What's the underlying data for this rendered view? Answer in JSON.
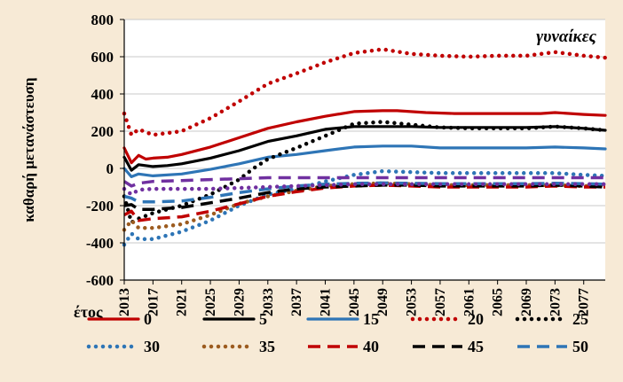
{
  "chart_data": {
    "type": "line",
    "annotation": "γυναίκες",
    "ylabel": "καθαρή μετανάστευση",
    "xlabel": "έτος",
    "ylim": [
      -600,
      800
    ],
    "yticks": [
      -600,
      -400,
      -200,
      0,
      200,
      400,
      600,
      800
    ],
    "xlim": [
      2013,
      2080
    ],
    "xticks": [
      2013,
      2017,
      2021,
      2025,
      2029,
      2033,
      2037,
      2041,
      2045,
      2049,
      2053,
      2057,
      2061,
      2065,
      2069,
      2073,
      2077
    ],
    "grid": "horizontal",
    "legend_position": "bottom",
    "series": [
      {
        "name": "0",
        "color": "#c00000",
        "dash": "solid",
        "x": [
          2013,
          2014,
          2015,
          2016,
          2017,
          2019,
          2021,
          2025,
          2029,
          2033,
          2037,
          2041,
          2045,
          2049,
          2051,
          2055,
          2059,
          2065,
          2071,
          2073,
          2077,
          2080
        ],
        "y": [
          110,
          30,
          70,
          50,
          55,
          60,
          75,
          115,
          165,
          215,
          250,
          280,
          305,
          310,
          310,
          300,
          295,
          295,
          295,
          300,
          290,
          285
        ]
      },
      {
        "name": "5",
        "color": "#000000",
        "dash": "solid",
        "x": [
          2013,
          2014,
          2015,
          2017,
          2019,
          2021,
          2025,
          2029,
          2033,
          2037,
          2041,
          2045,
          2049,
          2053,
          2057,
          2061,
          2065,
          2069,
          2073,
          2077,
          2080
        ],
        "y": [
          60,
          -10,
          20,
          10,
          15,
          25,
          55,
          95,
          145,
          175,
          210,
          225,
          225,
          225,
          220,
          220,
          220,
          220,
          225,
          215,
          205
        ]
      },
      {
        "name": "15",
        "color": "#2e75b6",
        "dash": "solid",
        "x": [
          2013,
          2014,
          2015,
          2017,
          2021,
          2025,
          2029,
          2033,
          2037,
          2041,
          2045,
          2049,
          2053,
          2057,
          2061,
          2065,
          2069,
          2073,
          2077,
          2080
        ],
        "y": [
          0,
          -45,
          -30,
          -40,
          -30,
          -5,
          25,
          60,
          75,
          95,
          115,
          120,
          120,
          110,
          110,
          110,
          110,
          115,
          110,
          105
        ]
      },
      {
        "name": "20",
        "color": "#c00000",
        "dash": "dot",
        "x": [
          2013,
          2014,
          2015,
          2017,
          2021,
          2025,
          2029,
          2033,
          2037,
          2041,
          2045,
          2049,
          2053,
          2057,
          2061,
          2065,
          2069,
          2073,
          2077,
          2080
        ],
        "y": [
          295,
          180,
          210,
          180,
          200,
          270,
          360,
          455,
          510,
          570,
          620,
          640,
          615,
          605,
          600,
          605,
          605,
          625,
          605,
          595
        ]
      },
      {
        "name": "25",
        "color": "#000000",
        "dash": "dot",
        "x": [
          2013,
          2014,
          2015,
          2017,
          2021,
          2025,
          2029,
          2031,
          2033,
          2037,
          2041,
          2045,
          2049,
          2053,
          2057,
          2061,
          2065,
          2069,
          2073,
          2077,
          2080
        ],
        "y": [
          -150,
          -290,
          -270,
          -240,
          -200,
          -140,
          -60,
          0,
          50,
          110,
          175,
          240,
          250,
          235,
          220,
          215,
          215,
          215,
          225,
          215,
          205
        ]
      },
      {
        "name": "30",
        "color": "#2e75b6",
        "dash": "dot",
        "x": [
          2013,
          2014,
          2015,
          2017,
          2021,
          2025,
          2029,
          2033,
          2037,
          2041,
          2045,
          2049,
          2053,
          2057,
          2061,
          2065,
          2069,
          2073,
          2077,
          2080
        ],
        "y": [
          -410,
          -350,
          -380,
          -380,
          -340,
          -280,
          -200,
          -140,
          -110,
          -70,
          -35,
          -15,
          -20,
          -25,
          -25,
          -25,
          -25,
          -25,
          -35,
          -40
        ]
      },
      {
        "name": "35",
        "color": "#9c5b1f",
        "dash": "dot",
        "x": [
          2013,
          2014,
          2015,
          2017,
          2021,
          2025,
          2029,
          2033,
          2037,
          2041,
          2045,
          2049,
          2053,
          2057,
          2061,
          2065,
          2069,
          2073,
          2077,
          2080
        ],
        "y": [
          -330,
          -280,
          -320,
          -320,
          -300,
          -250,
          -190,
          -150,
          -120,
          -95,
          -85,
          -80,
          -85,
          -90,
          -90,
          -90,
          -90,
          -90,
          -95,
          -95
        ]
      },
      {
        "name": "40",
        "color": "#c00000",
        "dash": "dash",
        "x": [
          2013,
          2014,
          2015,
          2017,
          2021,
          2025,
          2029,
          2033,
          2037,
          2041,
          2045,
          2049,
          2053,
          2057,
          2061,
          2065,
          2069,
          2073,
          2077,
          2080
        ],
        "y": [
          -250,
          -230,
          -280,
          -270,
          -260,
          -230,
          -190,
          -150,
          -125,
          -105,
          -95,
          -90,
          -95,
          -100,
          -100,
          -100,
          -100,
          -95,
          -100,
          -100
        ]
      },
      {
        "name": "45",
        "color": "#000000",
        "dash": "dash",
        "x": [
          2013,
          2014,
          2015,
          2017,
          2021,
          2025,
          2029,
          2033,
          2037,
          2041,
          2045,
          2049,
          2053,
          2057,
          2061,
          2065,
          2069,
          2073,
          2077,
          2080
        ],
        "y": [
          -200,
          -195,
          -220,
          -220,
          -210,
          -185,
          -160,
          -130,
          -110,
          -100,
          -95,
          -90,
          -90,
          -95,
          -95,
          -95,
          -95,
          -90,
          -95,
          -100
        ]
      },
      {
        "name": "50",
        "color": "#2e75b6",
        "dash": "dash",
        "x": [
          2013,
          2014,
          2015,
          2017,
          2021,
          2025,
          2029,
          2033,
          2037,
          2041,
          2045,
          2049,
          2053,
          2057,
          2061,
          2065,
          2069,
          2073,
          2077,
          2080
        ],
        "y": [
          -150,
          -160,
          -180,
          -180,
          -175,
          -155,
          -130,
          -110,
          -95,
          -85,
          -80,
          -78,
          -80,
          -82,
          -82,
          -82,
          -82,
          -80,
          -82,
          -85
        ]
      },
      {
        "name": "",
        "color": "#7030a0",
        "dash": "dash",
        "x": [
          2013,
          2014,
          2015,
          2017,
          2021,
          2025,
          2029,
          2033,
          2037,
          2041,
          2045,
          2049,
          2053,
          2057,
          2061,
          2065,
          2069,
          2073,
          2077,
          2080
        ],
        "y": [
          -70,
          -95,
          -80,
          -70,
          -65,
          -60,
          -55,
          -50,
          -50,
          -50,
          -50,
          -50,
          -50,
          -50,
          -50,
          -50,
          -50,
          -50,
          -50,
          -50
        ]
      },
      {
        "name": "",
        "color": "#7030a0",
        "dash": "dot",
        "x": [
          2013,
          2014,
          2015,
          2017,
          2021,
          2025,
          2029,
          2033,
          2037,
          2041,
          2045,
          2049,
          2053,
          2057,
          2061,
          2065,
          2069,
          2073,
          2077,
          2080
        ],
        "y": [
          -110,
          -140,
          -115,
          -110,
          -110,
          -110,
          -105,
          -100,
          -95,
          -90,
          -85,
          -85,
          -85,
          -85,
          -85,
          -85,
          -85,
          -85,
          -85,
          -85
        ]
      }
    ],
    "legend": [
      {
        "label": "0",
        "color": "#c00000",
        "dash": "solid"
      },
      {
        "label": "5",
        "color": "#000000",
        "dash": "solid"
      },
      {
        "label": "15",
        "color": "#2e75b6",
        "dash": "solid"
      },
      {
        "label": "20",
        "color": "#c00000",
        "dash": "dot"
      },
      {
        "label": "25",
        "color": "#000000",
        "dash": "dot"
      },
      {
        "label": "30",
        "color": "#2e75b6",
        "dash": "dot"
      },
      {
        "label": "35",
        "color": "#9c5b1f",
        "dash": "dot"
      },
      {
        "label": "40",
        "color": "#c00000",
        "dash": "dash"
      },
      {
        "label": "45",
        "color": "#000000",
        "dash": "dash"
      },
      {
        "label": "50",
        "color": "#2e75b6",
        "dash": "dash"
      }
    ]
  }
}
